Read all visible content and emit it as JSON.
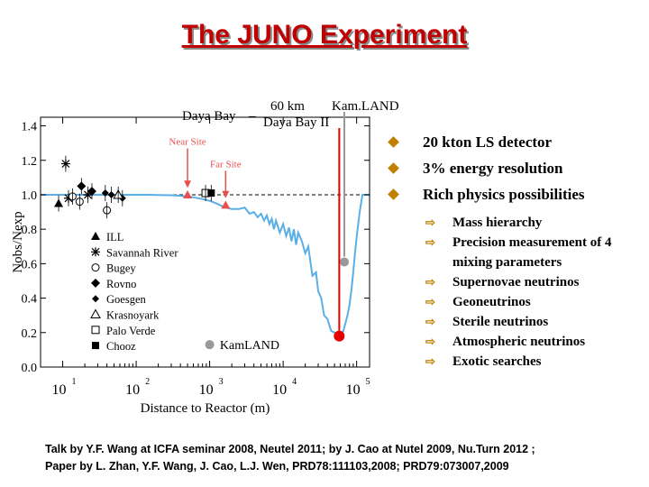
{
  "title": "The JUNO Experiment",
  "top_labels": {
    "daya_bay": "Daya Bay",
    "km60": "60 km",
    "kamland": "Kam.LAND",
    "daya_bay_ii": "Daya Bay II"
  },
  "colors": {
    "title": "#c00000",
    "curve": "#5aafe6",
    "marker_red": "#e60000",
    "arrow_red": "#e85050",
    "bullet": "#c08000"
  },
  "chart_data": {
    "type": "scatter",
    "ylabel": "Nobs/Nexp",
    "xlabel": "Distance to Reactor (m)",
    "xscale": "log",
    "xlim": [
      5,
      150000
    ],
    "ylim": [
      0,
      1.45
    ],
    "y_ticks": [
      {
        "v": 0.0,
        "label": "0.0"
      },
      {
        "v": 0.2,
        "label": "0.2"
      },
      {
        "v": 0.4,
        "label": "0.4"
      },
      {
        "v": 0.6,
        "label": "0.6"
      },
      {
        "v": 0.8,
        "label": "0.8"
      },
      {
        "v": 1.0,
        "label": "1.0"
      },
      {
        "v": 1.2,
        "label": "1.2"
      },
      {
        "v": 1.4,
        "label": "1.4"
      }
    ],
    "x_ticks": [
      {
        "v": 10,
        "base": "10",
        "exp": "1"
      },
      {
        "v": 100,
        "base": "10",
        "exp": "2"
      },
      {
        "v": 1000,
        "base": "10",
        "exp": "3"
      },
      {
        "v": 10000,
        "base": "10",
        "exp": "4"
      },
      {
        "v": 100000,
        "base": "10",
        "exp": "5"
      }
    ],
    "legend": [
      {
        "label": "ILL",
        "marker": "triangle-filled"
      },
      {
        "label": "Savannah River",
        "marker": "asterisk"
      },
      {
        "label": "Bugey",
        "marker": "circle-open"
      },
      {
        "label": "Rovno",
        "marker": "diamond-filled"
      },
      {
        "label": "Goesgen",
        "marker": "diamond-filled-small"
      },
      {
        "label": "Krasnoyark",
        "marker": "triangle-open"
      },
      {
        "label": "Palo Verde",
        "marker": "square-open"
      },
      {
        "label": "Chooz",
        "marker": "square-filled"
      }
    ],
    "experiments": [
      {
        "name": "ILL",
        "marker": "triangle-filled",
        "x": 8.8,
        "y": 0.95
      },
      {
        "name": "Savannah River",
        "marker": "asterisk",
        "x": 11,
        "y": 1.18
      },
      {
        "name": "Savannah River",
        "marker": "asterisk",
        "x": 12,
        "y": 0.98
      },
      {
        "name": "Savannah River",
        "marker": "asterisk",
        "x": 22,
        "y": 1.0
      },
      {
        "name": "Bugey",
        "marker": "circle-open",
        "x": 13.6,
        "y": 0.99
      },
      {
        "name": "Bugey",
        "marker": "circle-open",
        "x": 17,
        "y": 0.96
      },
      {
        "name": "Bugey",
        "marker": "circle-open",
        "x": 40,
        "y": 0.91
      },
      {
        "name": "Rovno",
        "marker": "diamond-filled",
        "x": 18,
        "y": 1.05
      },
      {
        "name": "Rovno",
        "marker": "diamond-filled",
        "x": 25,
        "y": 1.02
      },
      {
        "name": "Goesgen",
        "marker": "diamond-filled-small",
        "x": 38,
        "y": 1.01
      },
      {
        "name": "Goesgen",
        "marker": "diamond-filled-small",
        "x": 46,
        "y": 1.0
      },
      {
        "name": "Goesgen",
        "marker": "diamond-filled-small",
        "x": 65,
        "y": 0.98
      },
      {
        "name": "Krasnoyark",
        "marker": "triangle-open",
        "x": 57,
        "y": 1.0
      },
      {
        "name": "Palo Verde",
        "marker": "square-open",
        "x": 880,
        "y": 1.01
      },
      {
        "name": "Chooz",
        "marker": "square-filled",
        "x": 1050,
        "y": 1.01
      },
      {
        "name": "Daya Bay (Near Site)",
        "marker": "triangle-red",
        "x": 500,
        "y": 1.0
      },
      {
        "name": "Daya Bay (Far Site)",
        "marker": "triangle-red",
        "x": 1650,
        "y": 0.94
      },
      {
        "name": "KamLAND",
        "marker": "circle-gray",
        "x": 1000,
        "y": 0.13
      },
      {
        "name": "KamLAND",
        "marker": "circle-gray",
        "x": 180000,
        "y": 0.61
      },
      {
        "name": "Daya Bay II (JUNO)",
        "marker": "circle-red",
        "x": 58000,
        "y": 0.18
      }
    ],
    "annotations": [
      {
        "text": "Near Site",
        "x": 500,
        "y": 1.29,
        "arrow_to": 1.03
      },
      {
        "text": "Far Site",
        "x": 1650,
        "y": 1.16,
        "arrow_to": 0.97
      }
    ],
    "kamland_label": {
      "text": "KamLAND",
      "x": 3500,
      "y": 0.13
    },
    "oscillation_curve": {
      "x": [
        5,
        10,
        20,
        40,
        60,
        100,
        150,
        200,
        300,
        400,
        500,
        600,
        700,
        800,
        1000,
        1200,
        1500,
        1700,
        2000,
        2500,
        3000,
        3500,
        4000,
        4500,
        5000,
        5500,
        6000,
        6500,
        7000,
        7500,
        8000,
        9000,
        10000,
        11000,
        12000,
        13000,
        14000,
        15000,
        16000,
        18000,
        20000,
        22000,
        25000,
        28000,
        30000,
        33000,
        36000,
        40000,
        45000,
        50000,
        55000,
        58000,
        62000,
        66000,
        70000,
        75000,
        80000,
        85000,
        90000,
        95000,
        100000,
        110000,
        120000,
        130000,
        150000
      ],
      "y": [
        1.0,
        1.0,
        1.0,
        1.0,
        1.0,
        1.0,
        1.0,
        0.999,
        0.997,
        0.994,
        0.99,
        0.985,
        0.98,
        0.975,
        0.965,
        0.952,
        0.933,
        0.925,
        0.917,
        0.917,
        0.926,
        0.89,
        0.9,
        0.87,
        0.89,
        0.85,
        0.88,
        0.83,
        0.86,
        0.8,
        0.85,
        0.78,
        0.83,
        0.76,
        0.81,
        0.73,
        0.8,
        0.71,
        0.78,
        0.73,
        0.66,
        0.7,
        0.53,
        0.55,
        0.44,
        0.4,
        0.3,
        0.28,
        0.21,
        0.2,
        0.17,
        0.17,
        0.19,
        0.21,
        0.25,
        0.3,
        0.36,
        0.45,
        0.55,
        0.66,
        0.75,
        0.9,
        1.0,
        1.0,
        1.0
      ]
    }
  },
  "bullets": [
    {
      "text": "20 kton LS detector"
    },
    {
      "text": "3% energy resolution"
    },
    {
      "text": "Rich physics possibilities"
    }
  ],
  "sub_bullets": [
    {
      "text": "Mass hierarchy"
    },
    {
      "text": "Precision measurement of 4 mixing parameters"
    },
    {
      "text": "Supernovae neutrinos"
    },
    {
      "text": "Geoneutrinos"
    },
    {
      "text": "Sterile neutrinos"
    },
    {
      "text": "Atmospheric neutrinos"
    },
    {
      "text": "Exotic searches"
    }
  ],
  "footer": {
    "line1": "Talk by Y.F. Wang at ICFA seminar 2008, Neutel 2011;  by J. Cao at Nutel 2009, Nu.Turn 2012 ;",
    "line2": "Paper by L. Zhan, Y.F. Wang, J. Cao, L.J. Wen,  PRD78:111103,2008;  PRD79:073007,2009"
  }
}
